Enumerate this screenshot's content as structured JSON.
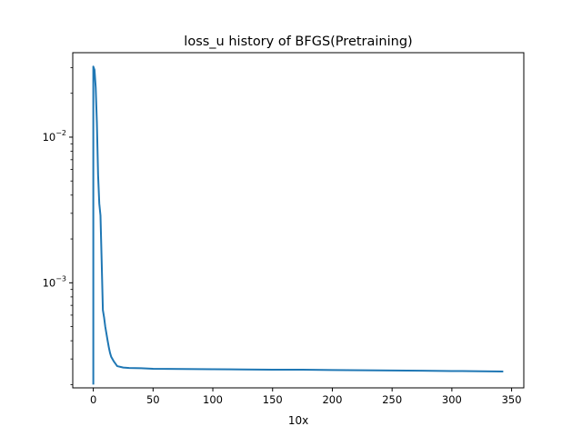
{
  "chart_data": {
    "type": "line",
    "title": "loss_u history of BFGS(Pretraining)",
    "xlabel": "10x",
    "ylabel": "",
    "xlim": [
      -17.2,
      360.2
    ],
    "ylim": [
      0.00019,
      0.038
    ],
    "yscale": "log",
    "grid": false,
    "legend": null,
    "x_ticks": [
      {
        "value": 0,
        "label": "0"
      },
      {
        "value": 50,
        "label": "50"
      },
      {
        "value": 100,
        "label": "100"
      },
      {
        "value": 150,
        "label": "150"
      },
      {
        "value": 200,
        "label": "200"
      },
      {
        "value": 250,
        "label": "250"
      },
      {
        "value": 300,
        "label": "300"
      },
      {
        "value": 350,
        "label": "350"
      }
    ],
    "y_ticks": [
      {
        "value": 0.001,
        "base": "10",
        "exponent": "−3"
      },
      {
        "value": 0.01,
        "base": "10",
        "exponent": "−2"
      }
    ],
    "series": [
      {
        "color": "#1f77b4",
        "x": [
          0,
          0,
          1,
          2,
          3,
          4,
          5,
          6,
          7,
          8,
          9,
          10,
          12,
          13,
          14,
          15,
          17,
          20,
          25,
          30,
          40,
          50,
          75,
          100,
          125,
          150,
          175,
          200,
          225,
          250,
          275,
          300,
          325,
          343
        ],
        "y": [
          0.0002,
          0.0305,
          0.029,
          0.022,
          0.0125,
          0.0055,
          0.0035,
          0.0029,
          0.0014,
          0.00065,
          0.00058,
          0.0005,
          0.0004,
          0.00036,
          0.00033,
          0.00031,
          0.00029,
          0.000268,
          0.000262,
          0.00026,
          0.000259,
          0.000257,
          0.000256,
          0.000255,
          0.000254,
          0.000253,
          0.000253,
          0.000252,
          0.000251,
          0.00025,
          0.000249,
          0.000248,
          0.000247,
          0.000246
        ]
      }
    ]
  }
}
